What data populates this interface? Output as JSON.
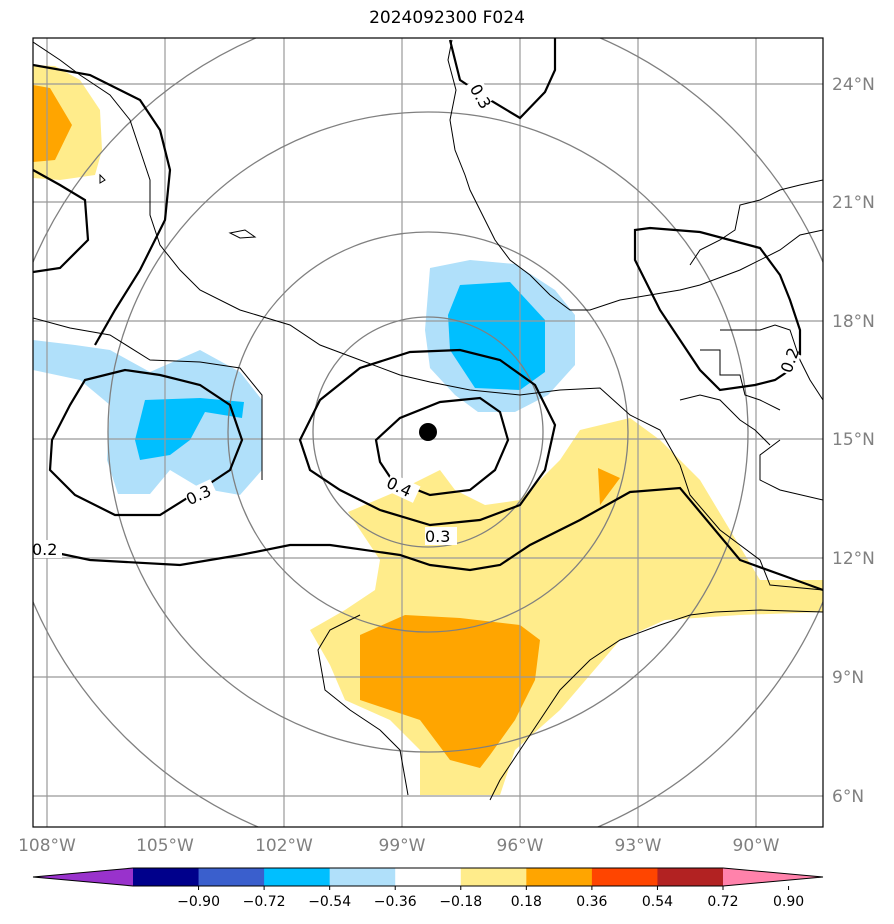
{
  "title": "2024092300 F024",
  "lon_labels": [
    "108°W",
    "105°W",
    "102°W",
    "99°W",
    "96°W",
    "93°W",
    "90°W"
  ],
  "lat_labels": [
    "24°N",
    "21°N",
    "18°N",
    "15°N",
    "12°N",
    "9°N",
    "6°N"
  ],
  "contour_labels": [
    "0.3",
    "0.2",
    "0.3",
    "0.4",
    "0.3",
    "0.2"
  ],
  "colorbar": {
    "ticks": [
      "−0.90",
      "−0.72",
      "−0.54",
      "−0.36",
      "−0.18",
      "0.18",
      "0.36",
      "0.54",
      "0.72",
      "0.90"
    ],
    "colors": [
      "#9932cc",
      "#00008b",
      "#3a5fcd",
      "#00bfff",
      "#b0e0fa",
      "#ffffff",
      "#ffec8b",
      "#ffa500",
      "#ff4500",
      "#b22222",
      "#ff82ab"
    ]
  },
  "center_marker": "storm-center-dot"
}
